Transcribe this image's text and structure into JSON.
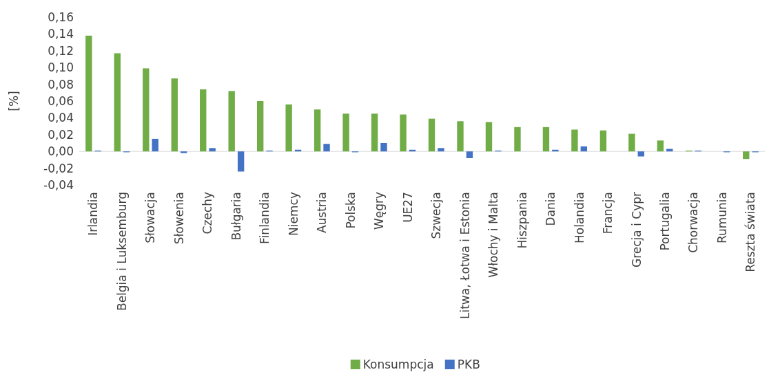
{
  "chart_data": {
    "type": "bar",
    "ylabel": "[%]",
    "categories": [
      "Irlandia",
      "Belgia i Luksemburg",
      "Słowacja",
      "Słowenia",
      "Czechy",
      "Bułgaria",
      "Finlandia",
      "Niemcy",
      "Austria",
      "Polska",
      "Węgry",
      "UE27",
      "Szwecja",
      "Litwa, Łotwa i Estonia",
      "Włochy i Malta",
      "Hiszpania",
      "Dania",
      "Holandia",
      "Francja",
      "Grecja i Cypr",
      "Portugalia",
      "Chorwacja",
      "Rumunia",
      "Reszta świata"
    ],
    "series": [
      {
        "name": "Konsumpcja",
        "color": "#70ad47",
        "values": [
          0.138,
          0.117,
          0.099,
          0.087,
          0.074,
          0.072,
          0.06,
          0.056,
          0.05,
          0.045,
          0.045,
          0.044,
          0.039,
          0.036,
          0.035,
          0.029,
          0.029,
          0.026,
          0.025,
          0.021,
          0.013,
          0.001,
          0,
          -0.009
        ]
      },
      {
        "name": "PKB",
        "color": "#4472c4",
        "values": [
          0.001,
          -0.001,
          0.015,
          -0.002,
          0.004,
          -0.024,
          0.001,
          0.002,
          0.009,
          -0.001,
          0.01,
          0.002,
          0.004,
          -0.008,
          0.001,
          0,
          0.002,
          0.006,
          0,
          -0.006,
          0.003,
          0.001,
          -0.001,
          -0.001
        ]
      }
    ],
    "ylim": [
      -0.04,
      0.16
    ],
    "yticks": [
      {
        "value": -0.04,
        "label": "-0,04"
      },
      {
        "value": -0.02,
        "label": "-0,02"
      },
      {
        "value": 0,
        "label": "0,00"
      },
      {
        "value": 0.02,
        "label": "0,02"
      },
      {
        "value": 0.04,
        "label": "0,04"
      },
      {
        "value": 0.06,
        "label": "0,06"
      },
      {
        "value": 0.08,
        "label": "0,08"
      },
      {
        "value": 0.1,
        "label": "0,10"
      },
      {
        "value": 0.12,
        "label": "0,12"
      },
      {
        "value": 0.14,
        "label": "0,14"
      },
      {
        "value": 0.16,
        "label": "0,16"
      }
    ],
    "legend": "bottom"
  }
}
